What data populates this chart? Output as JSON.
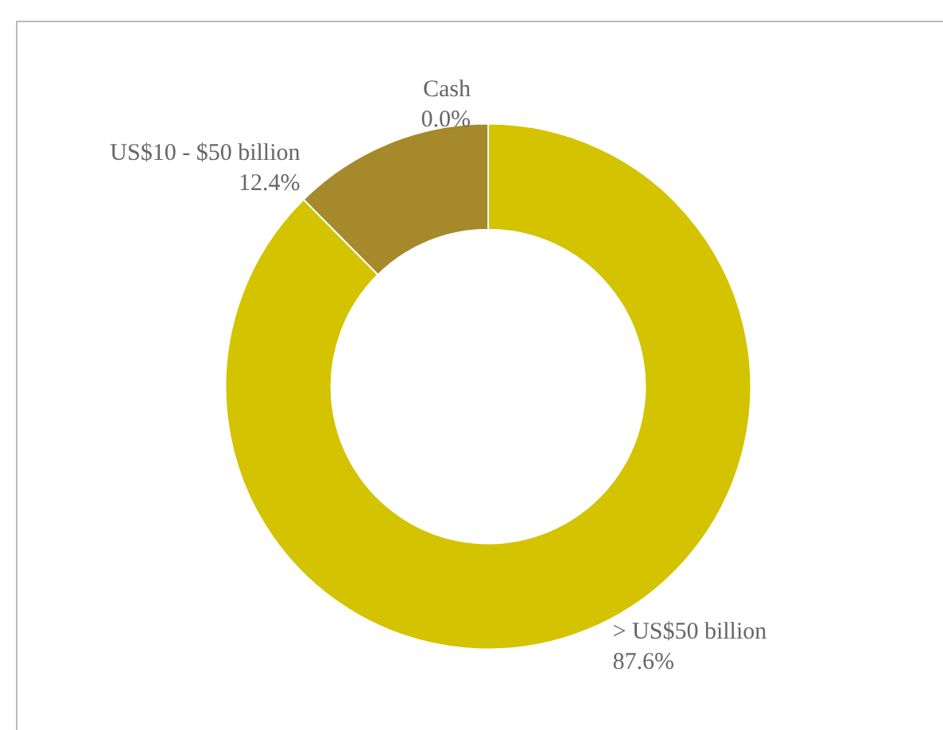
{
  "chart_data": {
    "type": "donut",
    "categories": [
      "> US$50 billion",
      "US$10 - $50 billion",
      "Cash"
    ],
    "values": [
      87.6,
      12.4,
      0.0
    ],
    "colors": [
      "#d4c300",
      "#a5892a",
      "#7f7f7f"
    ],
    "value_labels": [
      "87.6%",
      "12.4%",
      "0.0%"
    ],
    "legend": false
  }
}
